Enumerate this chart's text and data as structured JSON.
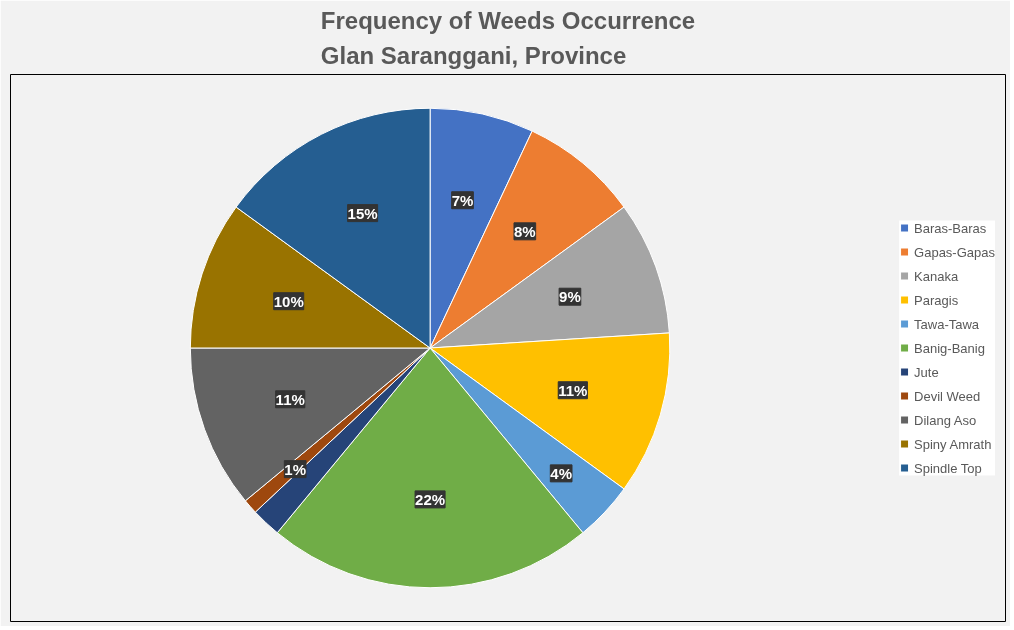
{
  "chart_data": {
    "type": "pie",
    "title": "Frequency of Weeds Occurrence\nGlan Saranggani, Province",
    "categories": [
      "Baras-Baras",
      "Gapas-Gapas",
      "Kanaka",
      "Paragis",
      "Tawa-Tawa",
      "Banig-Banig",
      "Jute",
      "Devil Weed",
      "Dilang Aso",
      "Spiny Amrath",
      "Spindle Top"
    ],
    "values": [
      7,
      8,
      9,
      11,
      4,
      22,
      2,
      1,
      11,
      10,
      15
    ],
    "colors": [
      "#4472c4",
      "#ed7d31",
      "#a5a5a5",
      "#ffc000",
      "#5b9bd5",
      "#70ad47",
      "#264478",
      "#9e480e",
      "#636363",
      "#997300",
      "#255e91"
    ],
    "value_labels": [
      "7%",
      "8%",
      "9%",
      "11%",
      "4%",
      "22%",
      null,
      "1%",
      "11%",
      "10%",
      "15%"
    ],
    "legend": "right"
  }
}
